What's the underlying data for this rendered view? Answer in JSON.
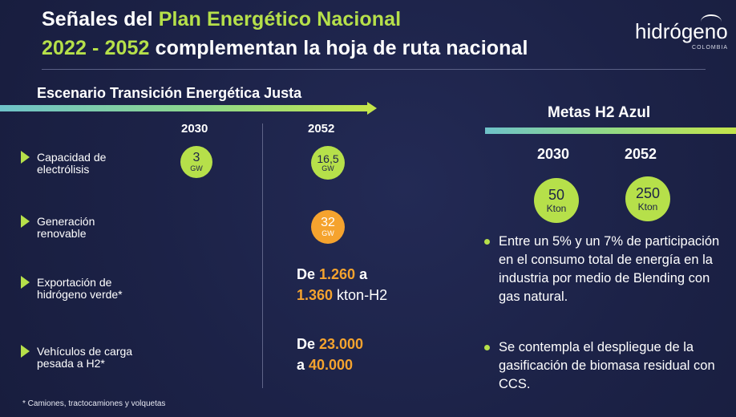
{
  "title": {
    "line1_prefix": "Señales del ",
    "line1_highlight": "Plan Energético Nacional",
    "line2_highlight": "2022 - 2052",
    "line2_suffix": " complementan la hoja de ruta nacional"
  },
  "logo": {
    "text": "hidrógeno",
    "subtext": "COLOMBIA"
  },
  "scenario": {
    "title": "Escenario Transición Energética Justa",
    "years": [
      "2030",
      "2052"
    ],
    "rows": [
      {
        "label": "Capacidad de electrólisis",
        "v2030": {
          "num": "3",
          "unit": "GW"
        },
        "v2052": {
          "num": "16,5",
          "unit": "GW"
        }
      },
      {
        "label": "Generación renovable",
        "v2052": {
          "num": "32",
          "unit": "GW"
        }
      },
      {
        "label": "Exportación de hidrógeno verde*",
        "text": {
          "a": "De ",
          "b": "1.260",
          "c": " a",
          "d": "1.360",
          "e": " kton-H2"
        }
      },
      {
        "label": "Vehículos de carga pesada a H2*",
        "text": {
          "a": "De ",
          "b": "23.000",
          "c": "a ",
          "d": "40.000"
        }
      }
    ],
    "footnote": "* Camiones, tractocamiones y volquetas"
  },
  "metas": {
    "title": "Metas H2 Azul",
    "years": [
      "2030",
      "2052"
    ],
    "values": [
      {
        "num": "50",
        "unit": "Kton"
      },
      {
        "num": "250",
        "unit": "Kton"
      }
    ],
    "bullets": [
      "Entre un 5% y un 7% de participación en el consumo total de energía en la industria por medio de Blending con gas natural.",
      "Se contempla el despliegue de la gasificación de biomasa residual con CCS."
    ]
  },
  "colors": {
    "background": "#1c2247",
    "green": "#b6e04a",
    "orange": "#f5a32e"
  }
}
